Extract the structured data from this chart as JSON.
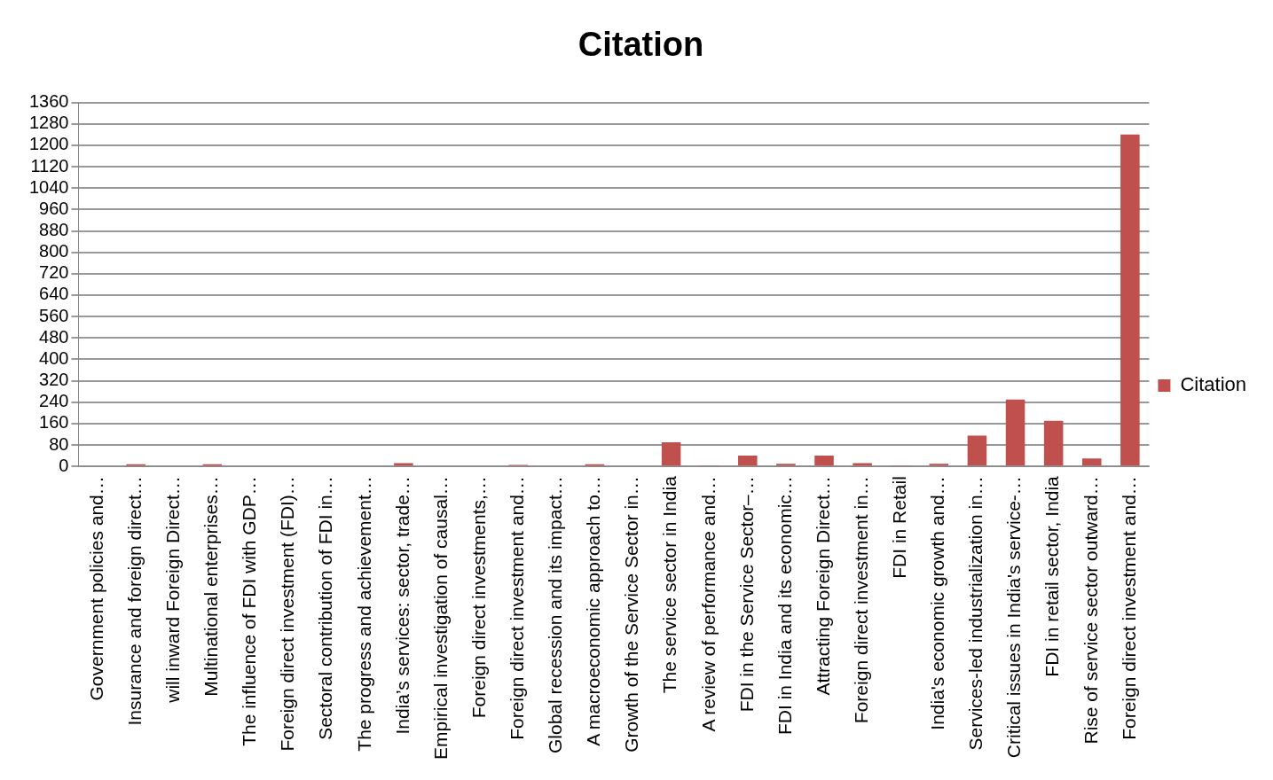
{
  "chart_data": {
    "type": "bar",
    "title": "Citation",
    "categories": [
      "Government policies and…",
      "Insurance and foreign direct…",
      "will inward Foreign Direct…",
      "Multinational enterprises…",
      "The influence of FDI with GDP…",
      "Foreign direct investment (FDI)…",
      "Sectoral contribution of FDI in…",
      "The progress and achievement…",
      "India’s services: sector, trade…",
      "Empirical investigation of causal…",
      "Foreign direct investments,…",
      "Foreign direct investment and…",
      "Global recession and its impact…",
      "A macroeconomic approach to…",
      "Growth of the Service Sector in…",
      "The service sector in India",
      "A review of performance and…",
      "FDI in the Service Sector–…",
      "FDI in India and its economic…",
      "Attracting Foreign Direct…",
      "Foreign direct investment in…",
      "FDI in Retail",
      "India's economic growth and…",
      "Services-led industrialization in…",
      "Critical issues in India's service-…",
      "FDI in retail sector, India",
      "Rise of service sector outward…",
      "Foreign direct investment and…"
    ],
    "series": [
      {
        "name": "Citation",
        "color": "#c0504d",
        "values": [
          3,
          8,
          3,
          8,
          3,
          3,
          3,
          3,
          12,
          3,
          3,
          6,
          3,
          8,
          3,
          90,
          2,
          40,
          10,
          40,
          12,
          2,
          10,
          115,
          250,
          170,
          30,
          1240
        ]
      }
    ],
    "ylim": [
      0,
      1360
    ],
    "yticks": [
      0,
      80,
      160,
      240,
      320,
      400,
      480,
      560,
      640,
      720,
      800,
      880,
      960,
      1040,
      1120,
      1200,
      1280,
      1360
    ],
    "grid": "y",
    "legend": "right"
  }
}
